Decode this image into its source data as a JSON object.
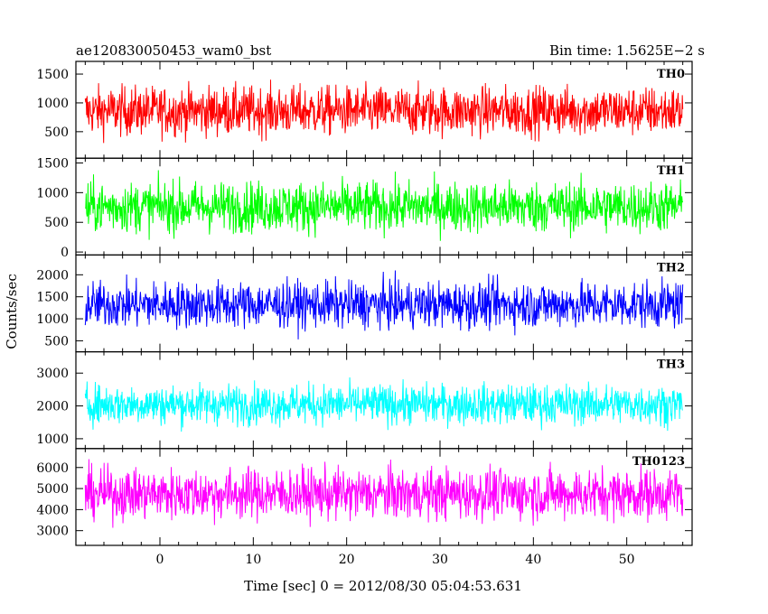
{
  "header": {
    "left_title": "ae120830050453_wam0_bst",
    "right_title": "Bin time: 1.5625E−2 s"
  },
  "chart_data": {
    "type": "line",
    "xlabel": "Time [sec] 0 = 2012/08/30 05:04:53.631",
    "ylabel": "Counts/sec",
    "xlim": [
      -9,
      57
    ],
    "x_data_range": [
      -8,
      56
    ],
    "xticks": [
      0,
      10,
      20,
      30,
      40,
      50
    ],
    "grid": false,
    "series": [
      {
        "name": "TH0",
        "color": "#ff0000",
        "ylim": [
          40,
          1720
        ],
        "yticks": [
          500,
          1000,
          1500
        ],
        "mean": 860,
        "spread": 210,
        "min": 150,
        "max": 1720
      },
      {
        "name": "TH1",
        "color": "#00ff00",
        "ylim": [
          -50,
          1580
        ],
        "yticks": [
          0,
          500,
          1000,
          1500
        ],
        "mean": 760,
        "spread": 210,
        "min": 60,
        "max": 1550
      },
      {
        "name": "TH2",
        "color": "#0000ff",
        "ylim": [
          250,
          2450
        ],
        "yticks": [
          500,
          1000,
          1500,
          2000
        ],
        "mean": 1320,
        "spread": 260,
        "min": 400,
        "max": 2450
      },
      {
        "name": "TH3",
        "color": "#00ffff",
        "ylim": [
          700,
          3650
        ],
        "yticks": [
          1000,
          2000,
          3000
        ],
        "mean": 2050,
        "spread": 300,
        "min": 1000,
        "max": 3550
      },
      {
        "name": "TH0123",
        "color": "#ff00ff",
        "ylim": [
          2300,
          6900
        ],
        "yticks": [
          3000,
          4000,
          5000,
          6000
        ],
        "mean": 4750,
        "spread": 600,
        "min": 2400,
        "max": 6900
      }
    ]
  }
}
